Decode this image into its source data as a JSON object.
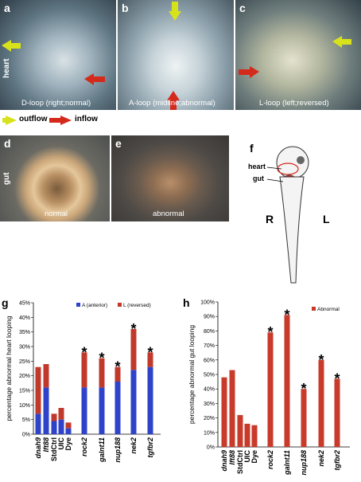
{
  "panels": {
    "a": {
      "label": "a",
      "caption": "D-loop (right;normal)",
      "side_label": "heart"
    },
    "b": {
      "label": "b",
      "caption": "A-loop (midline;abnormal)"
    },
    "c": {
      "label": "c",
      "caption": "L-loop (left;reversed)"
    },
    "d": {
      "label": "d",
      "caption": "normal",
      "side_label": "gut"
    },
    "e": {
      "label": "e",
      "caption": "abnormal"
    },
    "f": {
      "label": "f",
      "heart_label": "heart",
      "gut_label": "gut",
      "left_right": [
        "R",
        "L"
      ]
    }
  },
  "arrow_legend": {
    "outflow": "outflow",
    "inflow": "inflow"
  },
  "colors": {
    "outflow_arrow": "#d8e21a",
    "inflow_arrow": "#d42a1c",
    "anterior": "#2e43c9",
    "reversed": "#c0392b",
    "abnormal": "#c83a2a"
  },
  "chart_data": [
    {
      "panel_label": "g",
      "type": "bar",
      "stacked": true,
      "ylabel": "percentage abnormal heart looping",
      "ylim": [
        0,
        45
      ],
      "ytick_labels": [
        "0%",
        "5%",
        "10%",
        "15%",
        "20%",
        "25%",
        "30%",
        "35%",
        "40%",
        "45%"
      ],
      "categories": [
        "dnah9",
        "lft88",
        "StdCtrl",
        "UIC",
        "Dye",
        "rock2",
        "galnt11",
        "nup188",
        "nek2",
        "tgfbr2"
      ],
      "italic_categories": [
        true,
        true,
        false,
        false,
        false,
        true,
        true,
        true,
        true,
        true
      ],
      "significant": [
        false,
        false,
        false,
        false,
        false,
        true,
        true,
        true,
        true,
        true
      ],
      "legend_position": "top-right",
      "series": [
        {
          "name": "A (anterior)",
          "values": [
            7,
            16,
            4.5,
            5,
            2,
            16,
            16,
            18,
            22,
            23
          ]
        },
        {
          "name": "L (reversed)",
          "values": [
            16,
            8,
            2.5,
            4,
            2,
            12,
            10,
            5,
            14,
            5
          ]
        }
      ]
    },
    {
      "panel_label": "h",
      "type": "bar",
      "ylabel": "percentage abnormal gut looping",
      "ylim": [
        0,
        100
      ],
      "ytick_labels": [
        "0%",
        "10%",
        "20%",
        "30%",
        "40%",
        "50%",
        "60%",
        "70%",
        "80%",
        "90%",
        "100%"
      ],
      "categories": [
        "dnah9",
        "lft88",
        "StdCtrl",
        "UIC",
        "Dye",
        "rock2",
        "galnt11",
        "nup188",
        "nek2",
        "tgfbr2"
      ],
      "italic_categories": [
        true,
        true,
        false,
        false,
        false,
        true,
        true,
        true,
        true,
        true
      ],
      "significant": [
        false,
        false,
        false,
        false,
        false,
        true,
        true,
        true,
        true,
        true
      ],
      "legend_position": "top-right",
      "series": [
        {
          "name": "Abnormal",
          "values": [
            48,
            53,
            22,
            16,
            15,
            79,
            91,
            40,
            60,
            47
          ]
        }
      ]
    }
  ]
}
